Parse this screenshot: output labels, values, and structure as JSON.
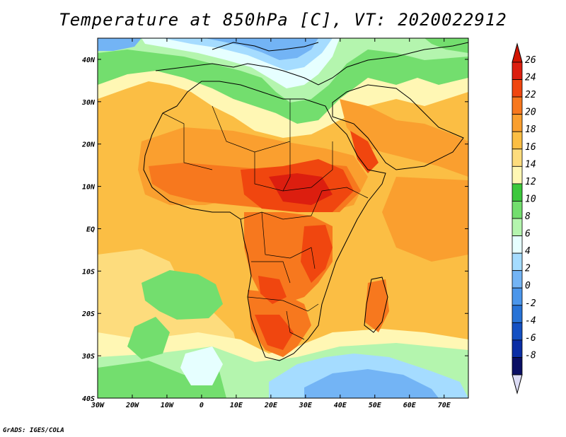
{
  "title": "Temperature at 850hPa [C], VT: 2020022912",
  "footer": "GrADS: IGES/COLA",
  "map": {
    "lon_range": [
      -30,
      77
    ],
    "lat_range": [
      -40,
      45
    ],
    "lon_ticks": [
      {
        "value": -30,
        "label": "30W"
      },
      {
        "value": -20,
        "label": "20W"
      },
      {
        "value": -10,
        "label": "10W"
      },
      {
        "value": 0,
        "label": "0"
      },
      {
        "value": 10,
        "label": "10E"
      },
      {
        "value": 20,
        "label": "20E"
      },
      {
        "value": 30,
        "label": "30E"
      },
      {
        "value": 40,
        "label": "40E"
      },
      {
        "value": 50,
        "label": "50E"
      },
      {
        "value": 60,
        "label": "60E"
      },
      {
        "value": 70,
        "label": "70E"
      }
    ],
    "lat_ticks": [
      {
        "value": 40,
        "label": "40N"
      },
      {
        "value": 30,
        "label": "30N"
      },
      {
        "value": 20,
        "label": "20N"
      },
      {
        "value": 10,
        "label": "10N"
      },
      {
        "value": 0,
        "label": "EQ"
      },
      {
        "value": -10,
        "label": "10S"
      },
      {
        "value": -20,
        "label": "20S"
      },
      {
        "value": -30,
        "label": "30S"
      },
      {
        "value": -40,
        "label": "40S"
      }
    ]
  },
  "colorbar": {
    "labels": [
      "26",
      "24",
      "22",
      "20",
      "18",
      "16",
      "14",
      "12",
      "10",
      "8",
      "6",
      "4",
      "2",
      "0",
      "-2",
      "-4",
      "-6",
      "-8"
    ],
    "colors": [
      "#dc1e0f",
      "#f0460f",
      "#f7781e",
      "#fa9f2f",
      "#fbbe44",
      "#fddc7d",
      "#fff7b4",
      "#3cc83c",
      "#73de6e",
      "#b4f5ae",
      "#e6ffff",
      "#a5dcff",
      "#73b4f5",
      "#4b96eb",
      "#2873d7",
      "#1450c3",
      "#0a2da5",
      "#0a0f64"
    ],
    "top_arrow_color": "#d21400",
    "bottom_arrow_color": "#dcdcf5"
  }
}
